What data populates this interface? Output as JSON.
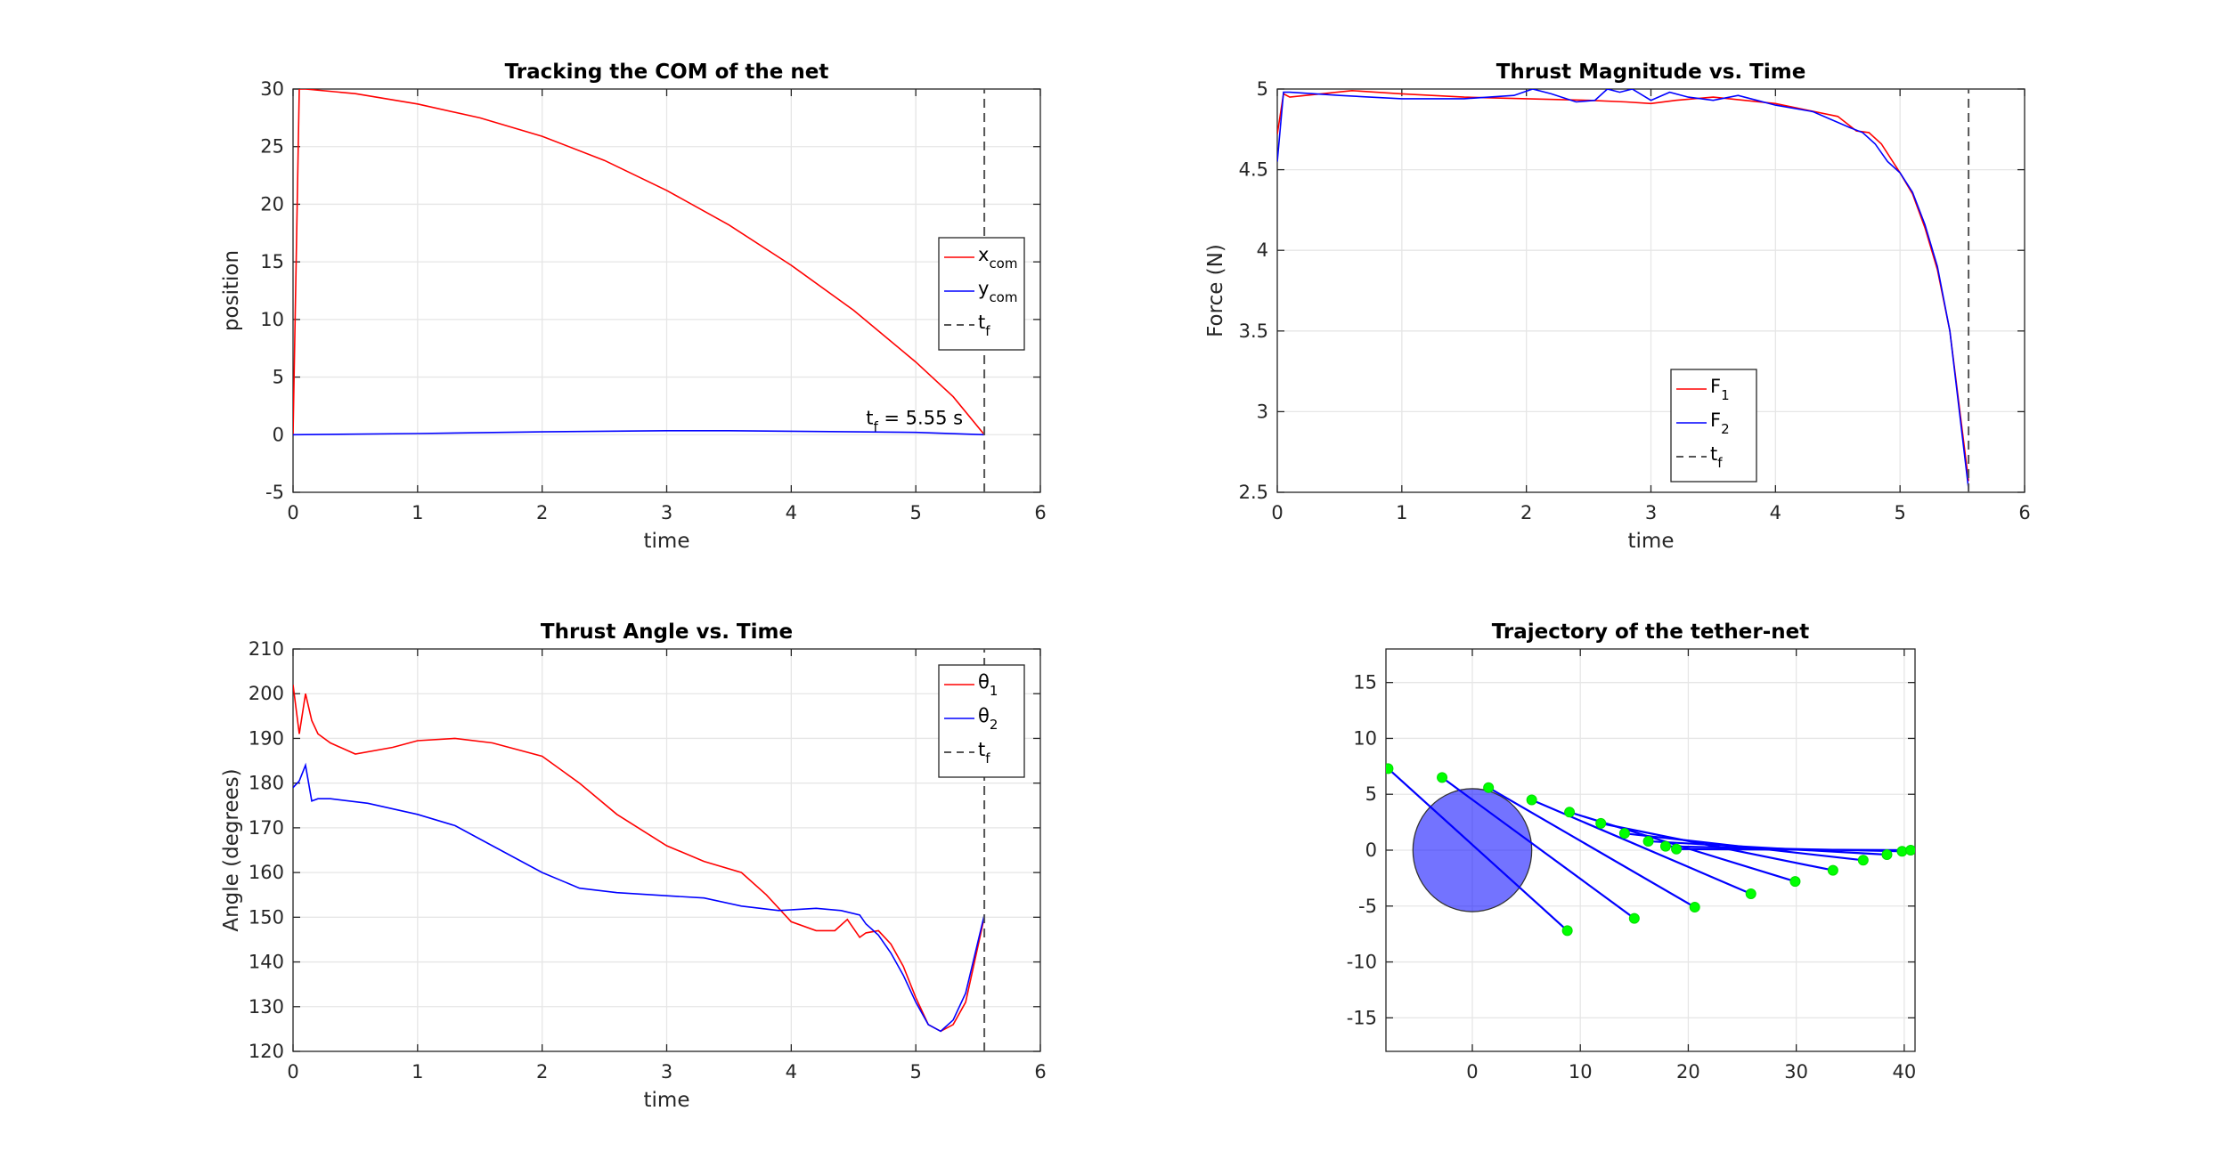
{
  "chart_data": [
    {
      "type": "line",
      "title": "Tracking the COM of the net",
      "xlabel": "time",
      "ylabel": "position",
      "xlim": [
        0,
        6
      ],
      "ylim": [
        -5,
        30
      ],
      "xticks": [
        "0",
        "1",
        "2",
        "3",
        "4",
        "5",
        "6"
      ],
      "yticks": [
        "-5",
        "0",
        "5",
        "10",
        "15",
        "20",
        "25",
        "30"
      ],
      "grid": true,
      "legend_position": "right",
      "series": [
        {
          "name": "x_com",
          "label_main": "x",
          "label_sub": "com",
          "color": "#ff0000",
          "x": [
            0,
            0.05,
            0.1,
            0.5,
            1.0,
            1.5,
            2.0,
            2.5,
            3.0,
            3.5,
            4.0,
            4.5,
            5.0,
            5.3,
            5.55
          ],
          "y": [
            0,
            30,
            30,
            29.6,
            28.7,
            27.5,
            25.9,
            23.8,
            21.2,
            18.2,
            14.7,
            10.8,
            6.3,
            3.3,
            0
          ]
        },
        {
          "name": "y_com",
          "label_main": "y",
          "label_sub": "com",
          "color": "#0000ff",
          "x": [
            0,
            1,
            2,
            3,
            3.5,
            4,
            5,
            5.55
          ],
          "y": [
            0,
            0.1,
            0.25,
            0.35,
            0.35,
            0.3,
            0.2,
            0
          ]
        },
        {
          "name": "t_f",
          "label_main": "t",
          "label_sub": "f",
          "color": "#555555",
          "dashed": true,
          "x": [
            5.55,
            5.55
          ],
          "y": [
            -5,
            30
          ]
        }
      ],
      "annotation": {
        "main": "t",
        "sub": "f",
        "rest": " = 5.55 s",
        "x": 4.6,
        "y": 0.9
      }
    },
    {
      "type": "line",
      "title": "Thrust Magnitude vs. Time",
      "xlabel": "time",
      "ylabel": "Force (N)",
      "xlim": [
        0,
        6
      ],
      "ylim": [
        2.5,
        5
      ],
      "xticks": [
        "0",
        "1",
        "2",
        "3",
        "4",
        "5",
        "6"
      ],
      "yticks": [
        "2.5",
        "3",
        "3.5",
        "4",
        "4.5",
        "5"
      ],
      "grid": true,
      "legend_position": "bottom-center",
      "series": [
        {
          "name": "F_1",
          "label_main": "F",
          "label_sub": "1",
          "color": "#ff0000",
          "x": [
            0,
            0.05,
            0.1,
            0.6,
            1.0,
            1.5,
            2.0,
            2.5,
            2.8,
            3.0,
            3.2,
            3.5,
            4.0,
            4.5,
            4.65,
            4.75,
            4.85,
            5.0,
            5.1,
            5.2,
            5.3,
            5.4,
            5.55
          ],
          "y": [
            4.72,
            4.97,
            4.95,
            4.99,
            4.97,
            4.95,
            4.94,
            4.93,
            4.92,
            4.91,
            4.93,
            4.95,
            4.91,
            4.83,
            4.74,
            4.73,
            4.66,
            4.48,
            4.35,
            4.14,
            3.88,
            3.5,
            2.57
          ]
        },
        {
          "name": "F_2",
          "label_main": "F",
          "label_sub": "2",
          "color": "#0000ff",
          "x": [
            0,
            0.05,
            0.1,
            0.5,
            1.0,
            1.5,
            1.9,
            2.05,
            2.2,
            2.4,
            2.55,
            2.65,
            2.75,
            2.85,
            3.0,
            3.15,
            3.3,
            3.5,
            3.7,
            3.85,
            4.0,
            4.3,
            4.6,
            4.7,
            4.8,
            4.9,
            5.0,
            5.1,
            5.2,
            5.3,
            5.4,
            5.55
          ],
          "y": [
            4.55,
            4.98,
            4.98,
            4.96,
            4.94,
            4.94,
            4.96,
            5.0,
            4.97,
            4.92,
            4.93,
            5.0,
            4.98,
            5.0,
            4.93,
            4.98,
            4.95,
            4.93,
            4.96,
            4.93,
            4.9,
            4.86,
            4.76,
            4.73,
            4.66,
            4.55,
            4.48,
            4.36,
            4.16,
            3.9,
            3.5,
            2.52
          ]
        },
        {
          "name": "t_f",
          "label_main": "t",
          "label_sub": "f",
          "color": "#555555",
          "dashed": true,
          "x": [
            5.55,
            5.55
          ],
          "y": [
            2.5,
            5
          ]
        }
      ]
    },
    {
      "type": "line",
      "title": "Thrust Angle vs. Time",
      "xlabel": "time",
      "ylabel": "Angle (degrees)",
      "xlim": [
        0,
        6
      ],
      "ylim": [
        120,
        210
      ],
      "xticks": [
        "0",
        "1",
        "2",
        "3",
        "4",
        "5",
        "6"
      ],
      "yticks": [
        "120",
        "130",
        "140",
        "150",
        "160",
        "170",
        "180",
        "190",
        "200",
        "210"
      ],
      "grid": true,
      "legend_position": "top-right",
      "series": [
        {
          "name": "theta_1",
          "label_main": "θ",
          "label_sub": "1",
          "color": "#ff0000",
          "x": [
            0,
            0.05,
            0.1,
            0.15,
            0.2,
            0.3,
            0.5,
            0.8,
            1.0,
            1.3,
            1.6,
            2.0,
            2.3,
            2.6,
            3.0,
            3.3,
            3.6,
            3.8,
            4.0,
            4.2,
            4.35,
            4.45,
            4.55,
            4.6,
            4.7,
            4.8,
            4.9,
            5.0,
            5.1,
            5.2,
            5.3,
            5.4,
            5.55
          ],
          "y": [
            202,
            191,
            200,
            194,
            191,
            189,
            186.5,
            188,
            189.5,
            190,
            189,
            186,
            180,
            173,
            166,
            162.5,
            160,
            155,
            149,
            147,
            147,
            149.5,
            145.5,
            146.5,
            147,
            144,
            139,
            132,
            126,
            124.5,
            126,
            131,
            150
          ]
        },
        {
          "name": "theta_2",
          "label_main": "θ",
          "label_sub": "2",
          "color": "#0000ff",
          "x": [
            0,
            0.05,
            0.1,
            0.15,
            0.2,
            0.3,
            0.6,
            1.0,
            1.3,
            1.6,
            2.0,
            2.3,
            2.6,
            3.0,
            3.3,
            3.6,
            3.9,
            4.2,
            4.4,
            4.55,
            4.6,
            4.7,
            4.8,
            4.9,
            5.0,
            5.1,
            5.2,
            5.3,
            5.4,
            5.55
          ],
          "y": [
            179,
            180.5,
            184,
            176,
            176.5,
            176.5,
            175.5,
            173,
            170.5,
            166,
            160,
            156.5,
            155.5,
            154.8,
            154.3,
            152.5,
            151.5,
            152,
            151.5,
            150.5,
            148.5,
            146,
            142,
            137,
            131,
            126,
            124.5,
            127,
            133,
            150.5
          ]
        },
        {
          "name": "t_f",
          "label_main": "t",
          "label_sub": "f",
          "color": "#555555",
          "dashed": true,
          "x": [
            5.55,
            5.55
          ],
          "y": [
            120,
            210
          ]
        }
      ]
    },
    {
      "type": "scatter",
      "title": "Trajectory of the tether-net",
      "xlabel": "",
      "ylabel": "",
      "xlim": [
        -8,
        41
      ],
      "ylim": [
        -18,
        18
      ],
      "xticks": [
        "0",
        "10",
        "20",
        "30",
        "40"
      ],
      "xtick_values": [
        0,
        10,
        20,
        30,
        40
      ],
      "yticks": [
        "-15",
        "-10",
        "-5",
        "0",
        "5",
        "10",
        "15"
      ],
      "ytick_values": [
        -15,
        -10,
        -5,
        0,
        5,
        10,
        15
      ],
      "grid": true,
      "target": {
        "cx": 0,
        "cy": 0,
        "r": 5.5,
        "color": "#0000ff"
      },
      "tethers": [
        {
          "a": [
            -7.8,
            7.3
          ],
          "b": [
            8.8,
            -7.2
          ]
        },
        {
          "a": [
            -2.8,
            6.5
          ],
          "b": [
            15.0,
            -6.1
          ]
        },
        {
          "a": [
            1.5,
            5.6
          ],
          "b": [
            20.6,
            -5.1
          ]
        },
        {
          "a": [
            5.5,
            4.5
          ],
          "b": [
            25.8,
            -3.9
          ]
        },
        {
          "a": [
            9.0,
            3.4
          ],
          "b": [
            29.9,
            -2.8
          ]
        },
        {
          "a": [
            11.9,
            2.4
          ],
          "b": [
            33.4,
            -1.8
          ]
        },
        {
          "a": [
            14.1,
            1.5
          ],
          "b": [
            36.2,
            -0.9
          ]
        },
        {
          "a": [
            16.3,
            0.8
          ],
          "b": [
            38.4,
            -0.4
          ]
        },
        {
          "a": [
            17.9,
            0.35
          ],
          "b": [
            39.8,
            -0.1
          ]
        },
        {
          "a": [
            18.9,
            0.1
          ],
          "b": [
            40.6,
            0.0
          ]
        }
      ]
    }
  ]
}
